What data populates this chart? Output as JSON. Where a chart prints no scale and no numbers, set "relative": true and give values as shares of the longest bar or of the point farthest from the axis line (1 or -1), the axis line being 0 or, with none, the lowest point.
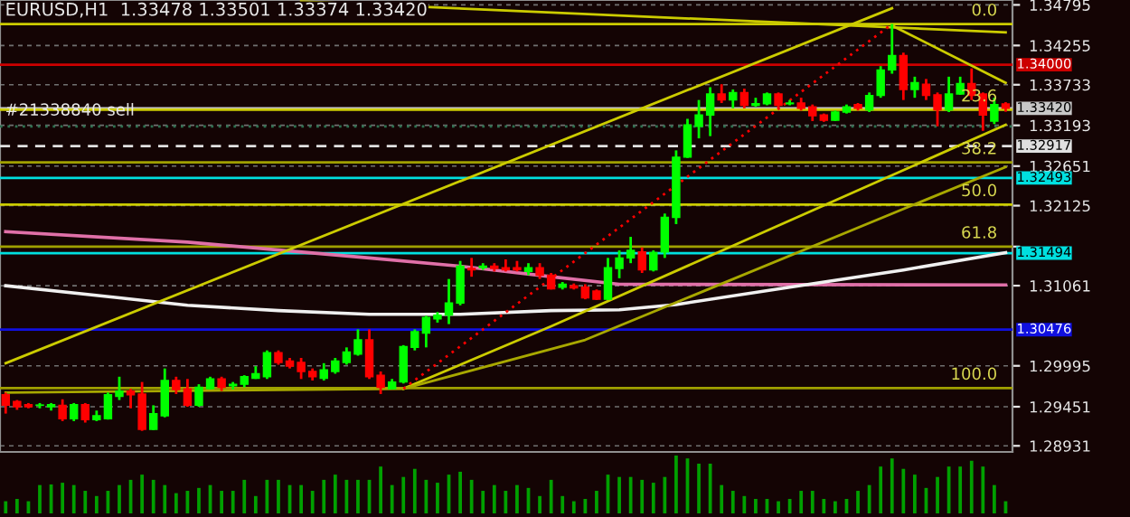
{
  "chart_data": [
    {
      "type": "candlestick",
      "title": "EURUSD,H1  1.33478 1.33501 1.33374 1.33420",
      "categories": [
        null,
        null,
        null,
        null,
        null,
        null,
        null,
        null,
        null,
        null,
        null,
        null,
        null,
        null,
        null,
        null,
        null,
        null,
        null,
        null,
        null,
        null,
        null,
        null,
        null,
        null,
        null,
        null,
        null,
        null,
        null,
        null,
        null,
        null,
        null,
        null,
        null,
        null,
        null,
        null,
        null,
        null,
        null,
        null,
        null,
        null,
        null,
        null,
        null,
        null,
        null,
        null,
        null,
        null,
        null,
        null,
        null,
        null,
        null,
        null,
        null,
        null,
        null,
        null,
        null,
        null,
        null,
        null,
        null,
        null,
        null,
        null,
        null,
        null,
        null,
        null,
        null,
        null,
        null,
        null,
        null,
        null,
        null,
        null,
        null,
        null,
        null,
        null,
        null
      ],
      "ohlc": [
        [
          1.2961,
          1.2964,
          1.2936,
          1.2947
        ],
        [
          1.2952,
          1.2954,
          1.2941,
          1.2945
        ],
        [
          1.2948,
          1.295,
          1.2943,
          1.2945
        ],
        [
          1.2947,
          1.295,
          1.2943,
          1.2947
        ],
        [
          1.2945,
          1.295,
          1.294,
          1.2948
        ],
        [
          1.2947,
          1.2955,
          1.2926,
          1.2929
        ],
        [
          1.2929,
          1.295,
          1.2926,
          1.2948
        ],
        [
          1.2948,
          1.295,
          1.2924,
          1.2928
        ],
        [
          1.2928,
          1.294,
          1.2926,
          1.2933
        ],
        [
          1.2929,
          1.2964,
          1.2928,
          1.2961
        ],
        [
          1.2959,
          1.2985,
          1.2954,
          1.2966
        ],
        [
          1.2966,
          1.2969,
          1.2943,
          1.2961
        ],
        [
          1.2962,
          1.2978,
          1.2913,
          1.2915
        ],
        [
          1.2915,
          1.2947,
          1.2914,
          1.2936
        ],
        [
          1.2933,
          1.2996,
          1.2931,
          1.298
        ],
        [
          1.298,
          1.2985,
          1.2962,
          1.2968
        ],
        [
          1.2969,
          1.2982,
          1.2945,
          1.2947
        ],
        [
          1.2947,
          1.2975,
          1.2945,
          1.2971
        ],
        [
          1.2969,
          1.2985,
          1.2968,
          1.2982
        ],
        [
          1.2982,
          1.2985,
          1.2966,
          1.2971
        ],
        [
          1.2973,
          1.2978,
          1.2968,
          1.2975
        ],
        [
          1.2975,
          1.2987,
          1.2971,
          1.2985
        ],
        [
          1.2983,
          1.2999,
          1.2982,
          1.2989
        ],
        [
          1.2985,
          1.302,
          1.2982,
          1.3017
        ],
        [
          1.3017,
          1.302,
          1.3001,
          1.3004
        ],
        [
          1.3006,
          1.301,
          1.2996,
          1.2999
        ],
        [
          1.3004,
          1.301,
          1.2982,
          1.2992
        ],
        [
          1.2992,
          1.2996,
          1.298,
          1.2985
        ],
        [
          1.2983,
          1.3003,
          1.298,
          1.2994
        ],
        [
          1.2992,
          1.301,
          1.2989,
          1.3006
        ],
        [
          1.3004,
          1.3024,
          1.3001,
          1.3018
        ],
        [
          1.3015,
          1.3048,
          1.3013,
          1.3034
        ],
        [
          1.3034,
          1.3048,
          1.2982,
          1.2985
        ],
        [
          1.2987,
          1.2992,
          1.2962,
          1.2971
        ],
        [
          1.2969,
          1.2982,
          1.2968,
          1.2978
        ],
        [
          1.2978,
          1.3027,
          1.2976,
          1.3025
        ],
        [
          1.3024,
          1.3048,
          1.302,
          1.3045
        ],
        [
          1.3043,
          1.3066,
          1.3024,
          1.3064
        ],
        [
          1.3062,
          1.3071,
          1.3057,
          1.3067
        ],
        [
          1.3067,
          1.3115,
          1.3055,
          1.3083
        ],
        [
          1.3083,
          1.3139,
          1.308,
          1.3132
        ],
        [
          1.3129,
          1.3143,
          1.3118,
          1.3127
        ],
        [
          1.313,
          1.3136,
          1.3127,
          1.3132
        ],
        [
          1.3132,
          1.3136,
          1.3125,
          1.3129
        ],
        [
          1.313,
          1.3141,
          1.3125,
          1.3127
        ],
        [
          1.313,
          1.3139,
          1.3125,
          1.3127
        ],
        [
          1.3125,
          1.3136,
          1.312,
          1.313
        ],
        [
          1.313,
          1.3136,
          1.3115,
          1.312
        ],
        [
          1.312,
          1.3123,
          1.3101,
          1.3102
        ],
        [
          1.3104,
          1.3111,
          1.3101,
          1.3108
        ],
        [
          1.3106,
          1.3109,
          1.3101,
          1.3103
        ],
        [
          1.3104,
          1.3108,
          1.3088,
          1.309
        ],
        [
          1.3099,
          1.3101,
          1.3087,
          1.3088
        ],
        [
          1.3088,
          1.3143,
          1.3087,
          1.313
        ],
        [
          1.3129,
          1.3153,
          1.3116,
          1.3143
        ],
        [
          1.3143,
          1.3171,
          1.3136,
          1.3153
        ],
        [
          1.3151,
          1.3157,
          1.3123,
          1.3127
        ],
        [
          1.3127,
          1.3153,
          1.3125,
          1.315
        ],
        [
          1.3151,
          1.3202,
          1.3143,
          1.3197
        ],
        [
          1.3197,
          1.3286,
          1.3188,
          1.3277
        ],
        [
          1.3277,
          1.3328,
          1.3276,
          1.332
        ],
        [
          1.3318,
          1.3353,
          1.3302,
          1.3333
        ],
        [
          1.3333,
          1.337,
          1.3305,
          1.3361
        ],
        [
          1.3361,
          1.3374,
          1.3349,
          1.3353
        ],
        [
          1.3353,
          1.3367,
          1.3342,
          1.3363
        ],
        [
          1.3363,
          1.3368,
          1.3342,
          1.3346
        ],
        [
          1.3346,
          1.3356,
          1.3344,
          1.3348
        ],
        [
          1.3348,
          1.3363,
          1.3346,
          1.3361
        ],
        [
          1.3361,
          1.3363,
          1.3342,
          1.3346
        ],
        [
          1.3348,
          1.3353,
          1.3346,
          1.3349
        ],
        [
          1.3349,
          1.3356,
          1.3339,
          1.3342
        ],
        [
          1.3344,
          1.3347,
          1.3325,
          1.3332
        ],
        [
          1.3333,
          1.3335,
          1.3324,
          1.3326
        ],
        [
          1.3326,
          1.3339,
          1.3325,
          1.3337
        ],
        [
          1.3337,
          1.3347,
          1.3335,
          1.3344
        ],
        [
          1.3347,
          1.3349,
          1.3339,
          1.3342
        ],
        [
          1.334,
          1.3363,
          1.3337,
          1.3359
        ],
        [
          1.3359,
          1.3398,
          1.3356,
          1.3393
        ],
        [
          1.3393,
          1.3454,
          1.3388,
          1.3412
        ],
        [
          1.3412,
          1.3416,
          1.3353,
          1.3367
        ],
        [
          1.3367,
          1.3384,
          1.3356,
          1.3376
        ],
        [
          1.3374,
          1.3381,
          1.3353,
          1.3359
        ],
        [
          1.336,
          1.3363,
          1.3318,
          1.334
        ],
        [
          1.334,
          1.3384,
          1.3337,
          1.3361
        ],
        [
          1.3361,
          1.3384,
          1.336,
          1.3375
        ],
        [
          1.3375,
          1.3395,
          1.3353,
          1.3359
        ],
        [
          1.3361,
          1.3363,
          1.3312,
          1.3333
        ],
        [
          1.3325,
          1.3356,
          1.3321,
          1.3347
        ],
        [
          1.33478,
          1.33501,
          1.33374,
          1.3342
        ]
      ],
      "colors": [
        "#ff0000",
        "#ff0000",
        "#ff0000",
        "#00ff00",
        "#00ff00",
        "#ff0000",
        "#00ff00",
        "#ff0000",
        "#00ff00",
        "#00ff00",
        "#00ff00",
        "#ff0000",
        "#ff0000",
        "#00ff00",
        "#00ff00",
        "#ff0000",
        "#ff0000",
        "#00ff00",
        "#00ff00",
        "#ff0000",
        "#00ff00",
        "#00ff00",
        "#00ff00",
        "#00ff00",
        "#ff0000",
        "#ff0000",
        "#ff0000",
        "#ff0000",
        "#00ff00",
        "#00ff00",
        "#00ff00",
        "#00ff00",
        "#ff0000",
        "#ff0000",
        "#00ff00",
        "#00ff00",
        "#00ff00",
        "#00ff00",
        "#00ff00",
        "#00ff00",
        "#00ff00",
        "#ff0000",
        "#00ff00",
        "#ff0000",
        "#ff0000",
        "#ff0000",
        "#00ff00",
        "#ff0000",
        "#ff0000",
        "#00ff00",
        "#ff0000",
        "#ff0000",
        "#ff0000",
        "#00ff00",
        "#00ff00",
        "#00ff00",
        "#ff0000",
        "#00ff00",
        "#00ff00",
        "#00ff00",
        "#00ff00",
        "#00ff00",
        "#00ff00",
        "#ff0000",
        "#00ff00",
        "#ff0000",
        "#00ff00",
        "#00ff00",
        "#ff0000",
        "#00ff00",
        "#ff0000",
        "#ff0000",
        "#ff0000",
        "#00ff00",
        "#00ff00",
        "#ff0000",
        "#00ff00",
        "#00ff00",
        "#00ff00",
        "#ff0000",
        "#00ff00",
        "#ff0000",
        "#ff0000",
        "#00ff00",
        "#00ff00",
        "#ff0000",
        "#ff0000",
        "#00ff00",
        "#ff0000"
      ],
      "series": [
        {
          "type": "line",
          "color": "#e070a8",
          "values": [
            1.3178,
            null,
            null,
            null,
            null,
            null,
            null,
            null,
            null,
            null,
            null,
            null,
            null,
            null,
            null,
            null,
            1.3164,
            null,
            null,
            null,
            null,
            null,
            null,
            null,
            null,
            null,
            null,
            null,
            null,
            null,
            null,
            null,
            1.3143,
            null,
            null,
            null,
            null,
            null,
            null,
            null,
            1.3132,
            null,
            null,
            null,
            null,
            null,
            null,
            null,
            1.3118,
            null,
            null,
            null,
            null,
            null,
            1.3108,
            null,
            null,
            null,
            null,
            null,
            null,
            null,
            null,
            null,
            null,
            null,
            null,
            null,
            null,
            null,
            null,
            null,
            null,
            null,
            null,
            null,
            null,
            null,
            null,
            null,
            null,
            null,
            null,
            null,
            null,
            null,
            null,
            null,
            1.3107
          ]
        },
        {
          "type": "line",
          "color": "#f0f0f0",
          "values": [
            1.3106,
            null,
            null,
            null,
            null,
            null,
            null,
            null,
            null,
            null,
            1.309,
            null,
            null,
            null,
            null,
            null,
            1.308,
            null,
            null,
            null,
            null,
            null,
            null,
            null,
            1.3073,
            null,
            null,
            null,
            null,
            null,
            null,
            null,
            1.3068,
            null,
            null,
            null,
            null,
            null,
            null,
            null,
            1.3068,
            null,
            null,
            null,
            null,
            null,
            null,
            null,
            1.3073,
            null,
            null,
            null,
            null,
            null,
            1.3074,
            null,
            null,
            null,
            null,
            1.3081,
            null,
            null,
            null,
            null,
            null,
            null,
            null,
            null,
            null,
            1.3104,
            null,
            null,
            null,
            null,
            null,
            null,
            null,
            null,
            null,
            1.3127,
            null,
            null,
            null,
            null,
            null,
            null,
            null,
            null,
            1.315
          ]
        },
        {
          "type": "line",
          "color": "#cccc00",
          "values": [
            1.3003,
            null,
            null,
            null,
            null,
            null,
            null,
            null,
            null,
            null,
            null,
            null,
            null,
            null,
            null,
            null,
            null,
            null,
            null,
            null,
            null,
            null,
            null,
            null,
            null,
            null,
            null,
            null,
            null,
            null,
            null,
            null,
            null,
            null,
            null,
            null,
            null,
            null,
            null,
            null,
            null,
            null,
            null,
            null,
            null,
            null,
            null,
            null,
            null,
            null,
            null,
            null,
            null,
            null,
            null,
            null,
            null,
            null,
            null,
            null,
            null,
            null,
            null,
            null,
            null,
            null,
            null,
            null,
            null,
            null,
            null,
            null,
            null,
            null,
            null,
            null,
            null,
            null,
            1.3475,
            null,
            null,
            null,
            null,
            null,
            null,
            null,
            null,
            null,
            null
          ]
        },
        {
          "type": "line",
          "color": "#cccc00",
          "values": [
            null,
            null,
            null,
            null,
            null,
            null,
            null,
            null,
            null,
            null,
            null,
            null,
            null,
            null,
            null,
            null,
            null,
            null,
            null,
            null,
            null,
            null,
            null,
            null,
            null,
            null,
            null,
            null,
            null,
            null,
            null,
            null,
            null,
            null,
            null,
            1.2969,
            null,
            null,
            null,
            null,
            null,
            null,
            null,
            null,
            null,
            null,
            null,
            null,
            1.3052,
            null,
            null,
            null,
            null,
            null,
            null,
            null,
            null,
            null,
            null,
            null,
            null,
            null,
            null,
            null,
            null,
            null,
            null,
            null,
            null,
            null,
            null,
            null,
            null,
            null,
            null,
            null,
            null,
            null,
            null,
            null,
            null,
            null,
            null,
            null,
            null,
            null,
            null,
            null,
            1.332
          ]
        },
        {
          "type": "line",
          "color": "#a8a800",
          "values": [
            1.2964,
            null,
            null,
            null,
            null,
            null,
            null,
            null,
            null,
            null,
            null,
            null,
            null,
            null,
            null,
            null,
            null,
            null,
            null,
            null,
            null,
            null,
            null,
            null,
            null,
            null,
            null,
            null,
            null,
            null,
            null,
            null,
            null,
            null,
            null,
            1.2969,
            null,
            null,
            null,
            null,
            null,
            null,
            null,
            null,
            null,
            null,
            null,
            null,
            null,
            null,
            null,
            1.3034,
            null,
            null,
            null,
            null,
            null,
            null,
            null,
            null,
            null,
            null,
            null,
            null,
            null,
            null,
            null,
            null,
            null,
            null,
            null,
            null,
            null,
            null,
            null,
            null,
            null,
            null,
            null,
            null,
            null,
            null,
            null,
            null,
            null,
            null,
            null,
            null,
            1.3264
          ]
        },
        {
          "type": "line",
          "color": "#cccc00",
          "values": [
            null,
            null,
            null,
            null,
            null,
            null,
            null,
            null,
            null,
            null,
            null,
            null,
            null,
            null,
            null,
            null,
            null,
            null,
            null,
            null,
            null,
            null,
            null,
            null,
            null,
            null,
            1.3484,
            null,
            null,
            null,
            null,
            null,
            null,
            null,
            null,
            null,
            null,
            null,
            null,
            null,
            null,
            null,
            null,
            null,
            null,
            null,
            null,
            null,
            null,
            null,
            null,
            null,
            null,
            null,
            null,
            null,
            null,
            null,
            null,
            null,
            null,
            null,
            null,
            null,
            null,
            null,
            null,
            null,
            null,
            null,
            null,
            null,
            null,
            null,
            null,
            null,
            null,
            null,
            null,
            null,
            null,
            null,
            null,
            null,
            null,
            null,
            null,
            null,
            1.3443
          ]
        },
        {
          "type": "line",
          "color": "#cccc00",
          "values": [
            null,
            null,
            null,
            null,
            null,
            null,
            null,
            null,
            null,
            null,
            null,
            null,
            null,
            null,
            null,
            null,
            null,
            null,
            null,
            null,
            null,
            null,
            null,
            null,
            null,
            null,
            null,
            null,
            null,
            null,
            null,
            null,
            null,
            null,
            null,
            null,
            null,
            null,
            null,
            null,
            null,
            null,
            null,
            null,
            null,
            null,
            null,
            null,
            null,
            null,
            null,
            null,
            null,
            null,
            null,
            null,
            null,
            null,
            null,
            null,
            null,
            null,
            null,
            null,
            null,
            null,
            null,
            null,
            null,
            null,
            null,
            null,
            null,
            null,
            null,
            null,
            null,
            null,
            1.3452,
            null,
            null,
            null,
            null,
            null,
            null,
            null,
            null,
            null,
            1.3376
          ]
        },
        {
          "type": "line",
          "color": "#ff0000",
          "line_style": "dotted",
          "values": [
            null,
            null,
            null,
            null,
            null,
            null,
            null,
            null,
            null,
            null,
            null,
            null,
            null,
            null,
            null,
            null,
            null,
            null,
            null,
            null,
            null,
            null,
            null,
            null,
            null,
            null,
            null,
            null,
            null,
            null,
            null,
            null,
            null,
            null,
            null,
            1.2969,
            null,
            null,
            null,
            null,
            null,
            null,
            null,
            null,
            null,
            null,
            null,
            null,
            null,
            null,
            null,
            null,
            null,
            null,
            null,
            null,
            null,
            null,
            null,
            null,
            null,
            null,
            null,
            null,
            null,
            null,
            null,
            null,
            null,
            null,
            null,
            null,
            null,
            null,
            null,
            null,
            null,
            null,
            1.3454,
            null,
            null,
            null,
            null,
            null,
            null,
            null,
            null,
            null,
            null
          ]
        }
      ],
      "ref_lines": [
        {
          "axis": "y",
          "value": 1.34,
          "label": "1.34000",
          "color": "#cc0000"
        },
        {
          "axis": "y",
          "value": 1.3342,
          "label": "1.33420",
          "color": "#c8c8c8"
        },
        {
          "axis": "y",
          "value": 1.3318,
          "label": "#21338840 sell",
          "color": "#2e7050",
          "line_style": "dotted"
        },
        {
          "axis": "y",
          "value": 1.32917,
          "label": "1.32917",
          "color": "#e0e0e0",
          "line_style": "dashed"
        },
        {
          "axis": "y",
          "value": 1.32493,
          "label": "1.32493",
          "color": "#00e0e0"
        },
        {
          "axis": "y",
          "value": 1.31494,
          "label": "1.31494",
          "color": "#00e0e0"
        },
        {
          "axis": "y",
          "value": 1.30476,
          "label": "1.30476",
          "color": "#1010e0"
        },
        {
          "axis": "y",
          "value": 1.3454,
          "color": "#cccc00"
        },
        {
          "axis": "y",
          "value": 1.334,
          "color": "#cccc00"
        },
        {
          "axis": "y",
          "value": 1.327,
          "color": "#a0a000"
        },
        {
          "axis": "y",
          "value": 1.3214,
          "color": "#cccc00"
        },
        {
          "axis": "y",
          "value": 1.3158,
          "color": "#a0a000"
        },
        {
          "axis": "y",
          "value": 1.297,
          "color": "#a0a000"
        }
      ],
      "annotations": [
        {
          "text": "0.0",
          "y": 1.3454
        },
        {
          "text": "23.6",
          "y": 1.334
        },
        {
          "text": "38.2",
          "y": 1.327
        },
        {
          "text": "50.0",
          "y": 1.3214
        },
        {
          "text": "61.8",
          "y": 1.3158
        },
        {
          "text": "100.0",
          "y": 1.297
        }
      ],
      "ylim": [
        1.2885,
        1.3486
      ],
      "yticks": [
        1.34795,
        1.34255,
        1.33733,
        1.33193,
        1.32651,
        1.32125,
        {
          "value": 1.31581,
          "label": null
        },
        1.31061,
        1.29995,
        1.29451,
        1.28931
      ],
      "grid": "y"
    },
    {
      "type": "bar",
      "relative": true,
      "color": "#00a000",
      "categories": [
        null,
        null,
        null,
        null,
        null,
        null,
        null,
        null,
        null,
        null,
        null,
        null,
        null,
        null,
        null,
        null,
        null,
        null,
        null,
        null,
        null,
        null,
        null,
        null,
        null,
        null,
        null,
        null,
        null,
        null,
        null,
        null,
        null,
        null,
        null,
        null,
        null,
        null,
        null,
        null,
        null,
        null,
        null,
        null,
        null,
        null,
        null,
        null,
        null,
        null,
        null,
        null,
        null,
        null,
        null,
        null,
        null,
        null,
        null,
        null,
        null,
        null,
        null,
        null,
        null,
        null,
        null,
        null,
        null,
        null,
        null,
        null,
        null,
        null,
        null,
        null,
        null,
        null,
        null,
        null,
        null,
        null,
        null,
        null,
        null,
        null,
        null,
        null,
        null
      ],
      "values": [
        0.21,
        0.25,
        0.21,
        0.49,
        0.5,
        0.53,
        0.49,
        0.39,
        0.3,
        0.39,
        0.49,
        0.58,
        0.67,
        0.58,
        0.49,
        0.35,
        0.39,
        0.44,
        0.49,
        0.39,
        0.39,
        0.58,
        0.3,
        0.58,
        0.58,
        0.49,
        0.49,
        0.39,
        0.58,
        0.67,
        0.58,
        0.58,
        0.58,
        0.81,
        0.49,
        0.63,
        0.77,
        0.58,
        0.53,
        0.67,
        0.72,
        0.58,
        0.39,
        0.49,
        0.39,
        0.49,
        0.44,
        0.3,
        0.58,
        0.3,
        0.21,
        0.25,
        0.39,
        0.67,
        0.63,
        0.63,
        0.58,
        0.53,
        0.63,
        1,
        0.95,
        0.86,
        0.86,
        0.49,
        0.39,
        0.3,
        0.25,
        0.25,
        0.21,
        0.25,
        0.39,
        0.39,
        0.25,
        0.21,
        0.25,
        0.39,
        0.49,
        0.81,
        0.95,
        0.77,
        0.67,
        0.44,
        0.63,
        0.81,
        0.81,
        0.91,
        0.81,
        0.49,
        0.21
      ]
    }
  ]
}
